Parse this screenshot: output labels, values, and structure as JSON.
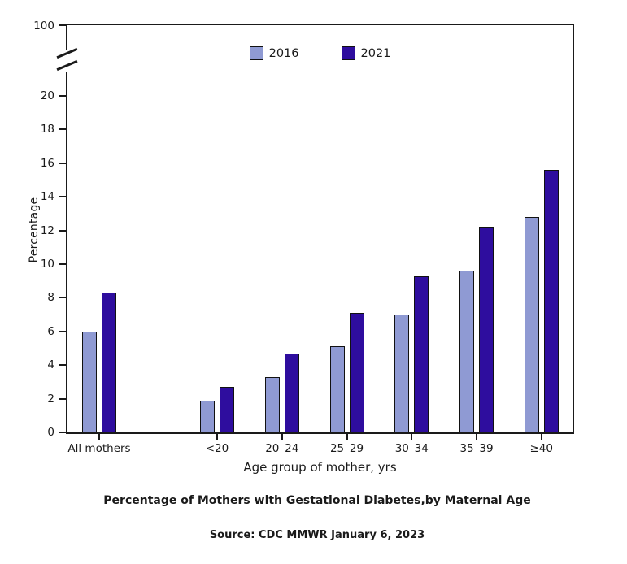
{
  "captions": {
    "source": "Source: CDC MMWR January 6, 2023"
  },
  "chart_data": {
    "type": "bar",
    "title": "Percentage of Mothers with Gestational Diabetes,by Maternal Age",
    "xlabel": "Age group of mother, yrs",
    "ylabel": "Percentage",
    "categories": [
      "All mothers",
      "<20",
      "20–24",
      "25–29",
      "30–34",
      "35–39",
      "≥40"
    ],
    "series": [
      {
        "name": "2016",
        "color": "#8F9AD3",
        "values": [
          6.0,
          1.9,
          3.3,
          5.1,
          7.0,
          9.6,
          12.8
        ]
      },
      {
        "name": "2021",
        "color": "#2E0D9E",
        "values": [
          8.3,
          2.7,
          4.7,
          7.1,
          9.3,
          12.2,
          15.6
        ]
      }
    ],
    "bar_border_color": "#111111",
    "axis_color": "#1a1a1a",
    "ylim": [
      0,
      20
    ],
    "yticks": [
      0,
      2,
      4,
      6,
      8,
      10,
      12,
      14,
      16,
      18,
      20
    ],
    "y_axis_break": true,
    "y_top_tick_label": "100",
    "grid": false,
    "legend_position": "top-center",
    "frame": "full-box"
  }
}
